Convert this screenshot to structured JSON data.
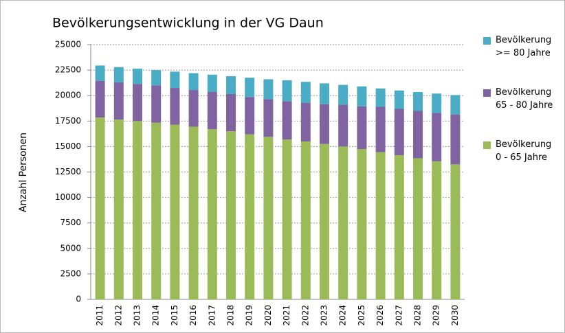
{
  "chart_data": {
    "type": "stacked_bar",
    "title": "Bevölkerungsentwicklung in der VG Daun",
    "ylabel": "Anzahl Personen",
    "categories": [
      "2011",
      "2012",
      "2013",
      "2014",
      "2015",
      "2016",
      "2017",
      "2018",
      "2019",
      "2020",
      "2021",
      "2022",
      "2023",
      "2024",
      "2025",
      "2026",
      "2027",
      "2028",
      "2029",
      "2030"
    ],
    "series": [
      {
        "name": "Bevölkerung\n0 - 65 Jahre",
        "color": "#9bbb59",
        "values": [
          17850,
          17650,
          17500,
          17350,
          17150,
          16950,
          16700,
          16500,
          16200,
          15950,
          15700,
          15500,
          15250,
          15000,
          14750,
          14450,
          14150,
          13850,
          13550,
          13250
        ]
      },
      {
        "name": "Bevölkerung\n65 - 80 Jahre",
        "color": "#8064a2",
        "values": [
          3600,
          3650,
          3650,
          3650,
          3600,
          3600,
          3650,
          3650,
          3650,
          3700,
          3750,
          3800,
          3900,
          4100,
          4200,
          4450,
          4550,
          4650,
          4750,
          4900
        ]
      },
      {
        "name": "Bevölkerung\n>= 80 Jahre",
        "color": "#4bacc6",
        "values": [
          1500,
          1500,
          1500,
          1500,
          1600,
          1650,
          1700,
          1750,
          1900,
          1950,
          2050,
          2050,
          2050,
          1950,
          1950,
          1800,
          1800,
          1850,
          1900,
          1900
        ]
      }
    ],
    "ylim": [
      0,
      25000
    ],
    "yticks": [
      0,
      2500,
      5000,
      7500,
      10000,
      12500,
      15000,
      17500,
      20000,
      22500,
      25000
    ],
    "grid": true
  }
}
